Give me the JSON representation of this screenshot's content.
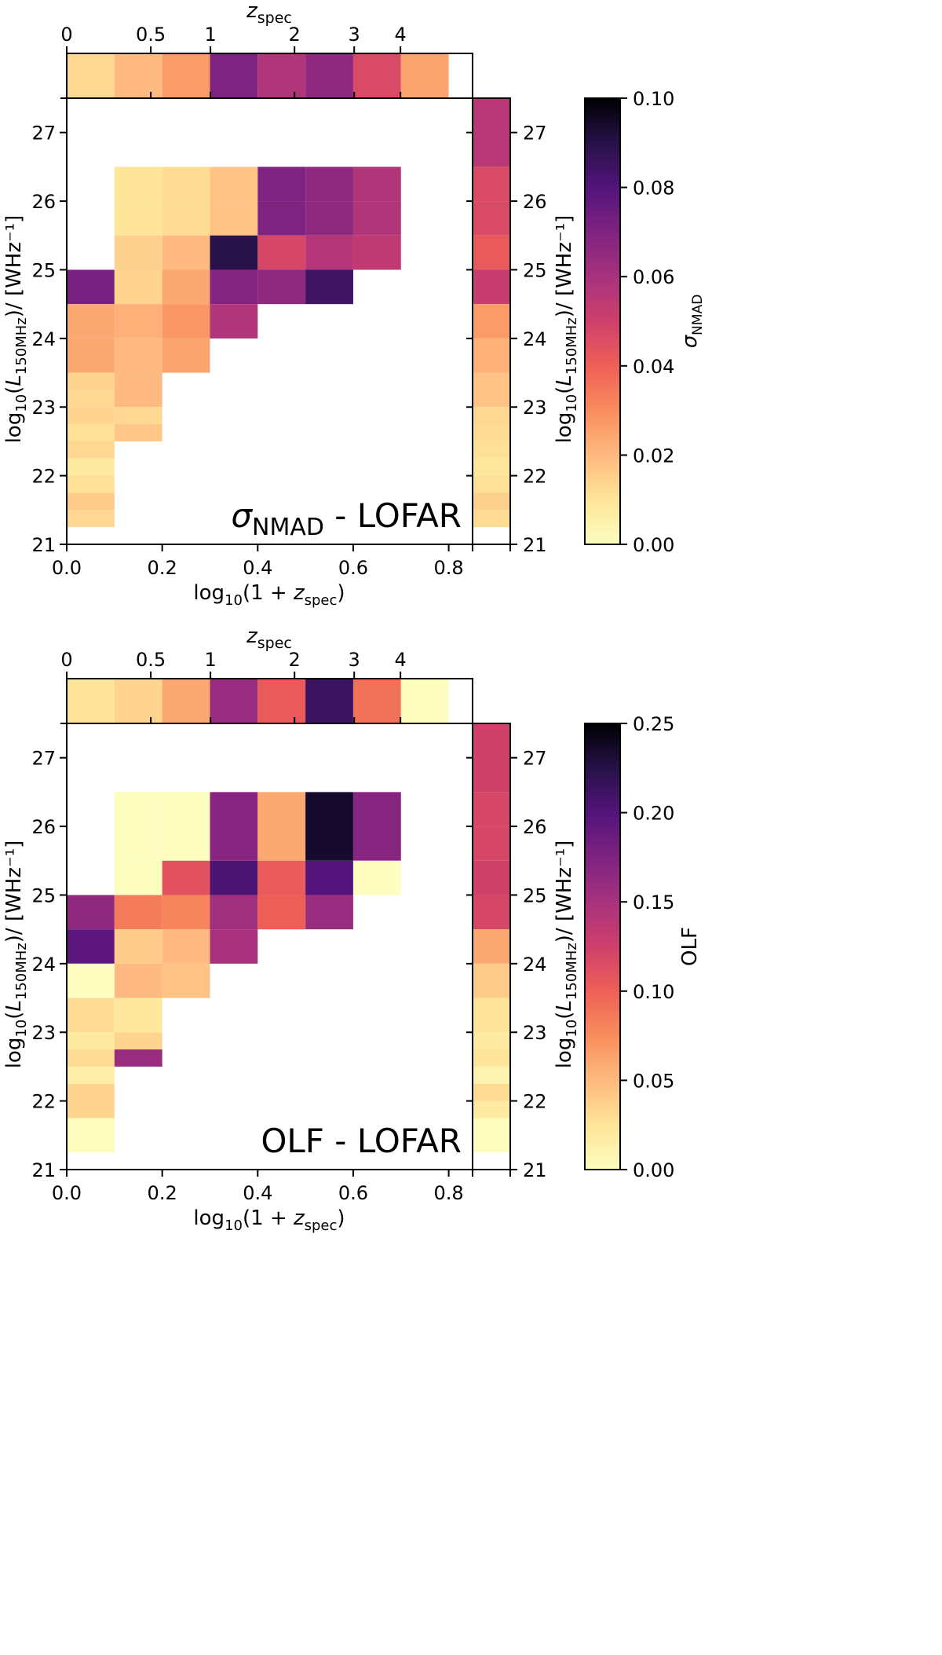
{
  "chart_data": [
    {
      "type": "heatmap",
      "title": "",
      "annotation": {
        "symbol": "σ",
        "sub": "NMAD",
        "text": " - LOFAR"
      },
      "xlabel": {
        "pre": "log",
        "sub1": "10",
        "mid": "(1 + ",
        "var": "z",
        "sub2": "spec",
        "post": ")"
      },
      "ylabel": {
        "pre": "log",
        "sub1": "10",
        "mid": "(",
        "var": "L",
        "sub2": "150MHz",
        "post": ")/ [WHz⁻¹]"
      },
      "top_label": {
        "var": "z",
        "sub": "spec"
      },
      "cbar_label": {
        "symbol": "σ",
        "sub": "NMAD"
      },
      "xlim": [
        0.0,
        0.85
      ],
      "ylim": [
        21,
        27.5
      ],
      "x_ticks": [
        "0.0",
        "0.2",
        "0.4",
        "0.6",
        "0.8"
      ],
      "y_ticks": [
        "21",
        "22",
        "23",
        "24",
        "25",
        "26",
        "27"
      ],
      "z_ticks": [
        {
          "z": 0,
          "label": "0"
        },
        {
          "z": 0.5,
          "label": "0.5"
        },
        {
          "z": 1,
          "label": "1"
        },
        {
          "z": 2,
          "label": "2"
        },
        {
          "z": 3,
          "label": "3"
        },
        {
          "z": 4,
          "label": "4"
        }
      ],
      "cbar_range": [
        0.0,
        0.1
      ],
      "cbar_ticks": [
        "0.00",
        "0.02",
        "0.04",
        "0.06",
        "0.08",
        "0.10"
      ],
      "cells": [
        {
          "x": [
            0.0,
            0.1
          ],
          "y": [
            24.5,
            25.0
          ],
          "v": 0.072
        },
        {
          "x": [
            0.0,
            0.1
          ],
          "y": [
            24.0,
            24.5
          ],
          "v": 0.024
        },
        {
          "x": [
            0.0,
            0.1
          ],
          "y": [
            23.5,
            24.0
          ],
          "v": 0.024
        },
        {
          "x": [
            0.0,
            0.1
          ],
          "y": [
            23.25,
            23.5
          ],
          "v": 0.014
        },
        {
          "x": [
            0.0,
            0.1
          ],
          "y": [
            23.0,
            23.25
          ],
          "v": 0.013
        },
        {
          "x": [
            0.0,
            0.1
          ],
          "y": [
            22.75,
            23.0
          ],
          "v": 0.014
        },
        {
          "x": [
            0.0,
            0.1
          ],
          "y": [
            22.5,
            22.75
          ],
          "v": 0.011
        },
        {
          "x": [
            0.0,
            0.1
          ],
          "y": [
            22.25,
            22.5
          ],
          "v": 0.013
        },
        {
          "x": [
            0.0,
            0.1
          ],
          "y": [
            22.0,
            22.25
          ],
          "v": 0.008
        },
        {
          "x": [
            0.0,
            0.1
          ],
          "y": [
            21.75,
            22.0
          ],
          "v": 0.011
        },
        {
          "x": [
            0.0,
            0.1
          ],
          "y": [
            21.5,
            21.75
          ],
          "v": 0.016
        },
        {
          "x": [
            0.0,
            0.1
          ],
          "y": [
            21.25,
            21.5
          ],
          "v": 0.013
        },
        {
          "x": [
            0.1,
            0.2
          ],
          "y": [
            26.0,
            26.5
          ],
          "v": 0.01
        },
        {
          "x": [
            0.1,
            0.2
          ],
          "y": [
            25.5,
            26.0
          ],
          "v": 0.01
        },
        {
          "x": [
            0.1,
            0.2
          ],
          "y": [
            25.0,
            25.5
          ],
          "v": 0.015
        },
        {
          "x": [
            0.1,
            0.2
          ],
          "y": [
            24.5,
            25.0
          ],
          "v": 0.014
        },
        {
          "x": [
            0.1,
            0.2
          ],
          "y": [
            24.0,
            24.5
          ],
          "v": 0.022
        },
        {
          "x": [
            0.1,
            0.2
          ],
          "y": [
            23.5,
            24.0
          ],
          "v": 0.02
        },
        {
          "x": [
            0.1,
            0.2
          ],
          "y": [
            23.0,
            23.5
          ],
          "v": 0.02
        },
        {
          "x": [
            0.1,
            0.2
          ],
          "y": [
            22.75,
            23.0
          ],
          "v": 0.013
        },
        {
          "x": [
            0.1,
            0.2
          ],
          "y": [
            22.5,
            22.75
          ],
          "v": 0.017
        },
        {
          "x": [
            0.2,
            0.3
          ],
          "y": [
            26.0,
            26.5
          ],
          "v": 0.012
        },
        {
          "x": [
            0.2,
            0.3
          ],
          "y": [
            25.5,
            26.0
          ],
          "v": 0.012
        },
        {
          "x": [
            0.2,
            0.3
          ],
          "y": [
            25.0,
            25.5
          ],
          "v": 0.02
        },
        {
          "x": [
            0.2,
            0.3
          ],
          "y": [
            24.5,
            25.0
          ],
          "v": 0.024
        },
        {
          "x": [
            0.2,
            0.3
          ],
          "y": [
            24.0,
            24.5
          ],
          "v": 0.028
        },
        {
          "x": [
            0.2,
            0.3
          ],
          "y": [
            23.5,
            24.0
          ],
          "v": 0.025
        },
        {
          "x": [
            0.3,
            0.4
          ],
          "y": [
            26.0,
            26.5
          ],
          "v": 0.018
        },
        {
          "x": [
            0.3,
            0.4
          ],
          "y": [
            25.5,
            26.0
          ],
          "v": 0.018
        },
        {
          "x": [
            0.3,
            0.4
          ],
          "y": [
            25.0,
            25.5
          ],
          "v": 0.09
        },
        {
          "x": [
            0.3,
            0.4
          ],
          "y": [
            24.5,
            25.0
          ],
          "v": 0.069
        },
        {
          "x": [
            0.3,
            0.4
          ],
          "y": [
            24.0,
            24.5
          ],
          "v": 0.058
        },
        {
          "x": [
            0.4,
            0.5
          ],
          "y": [
            26.0,
            26.5
          ],
          "v": 0.07
        },
        {
          "x": [
            0.4,
            0.5
          ],
          "y": [
            25.5,
            26.0
          ],
          "v": 0.07
        },
        {
          "x": [
            0.4,
            0.5
          ],
          "y": [
            25.0,
            25.5
          ],
          "v": 0.048
        },
        {
          "x": [
            0.4,
            0.5
          ],
          "y": [
            24.5,
            25.0
          ],
          "v": 0.066
        },
        {
          "x": [
            0.5,
            0.6
          ],
          "y": [
            26.0,
            26.5
          ],
          "v": 0.066
        },
        {
          "x": [
            0.5,
            0.6
          ],
          "y": [
            25.5,
            26.0
          ],
          "v": 0.066
        },
        {
          "x": [
            0.5,
            0.6
          ],
          "y": [
            25.0,
            25.5
          ],
          "v": 0.057
        },
        {
          "x": [
            0.5,
            0.6
          ],
          "y": [
            24.5,
            25.0
          ],
          "v": 0.085
        },
        {
          "x": [
            0.6,
            0.7
          ],
          "y": [
            26.0,
            26.5
          ],
          "v": 0.058
        },
        {
          "x": [
            0.6,
            0.7
          ],
          "y": [
            25.5,
            26.0
          ],
          "v": 0.058
        },
        {
          "x": [
            0.6,
            0.7
          ],
          "y": [
            25.0,
            25.5
          ],
          "v": 0.054
        }
      ],
      "top_marginal": [
        0.013,
        0.02,
        0.027,
        0.07,
        0.058,
        0.066,
        0.047,
        0.025
      ],
      "right_marginal": [
        {
          "y": [
            26.5,
            27.5
          ],
          "v": 0.056
        },
        {
          "y": [
            26.0,
            26.5
          ],
          "v": 0.047
        },
        {
          "y": [
            25.5,
            26.0
          ],
          "v": 0.047
        },
        {
          "y": [
            25.0,
            25.5
          ],
          "v": 0.042
        },
        {
          "y": [
            24.5,
            25.0
          ],
          "v": 0.052
        },
        {
          "y": [
            24.0,
            24.5
          ],
          "v": 0.027
        },
        {
          "y": [
            23.5,
            24.0
          ],
          "v": 0.022
        },
        {
          "y": [
            23.0,
            23.5
          ],
          "v": 0.018
        },
        {
          "y": [
            22.75,
            23.0
          ],
          "v": 0.013
        },
        {
          "y": [
            22.5,
            22.75
          ],
          "v": 0.012
        },
        {
          "y": [
            22.25,
            22.5
          ],
          "v": 0.011
        },
        {
          "y": [
            22.0,
            22.25
          ],
          "v": 0.009
        },
        {
          "y": [
            21.75,
            22.0
          ],
          "v": 0.011
        },
        {
          "y": [
            21.5,
            21.75
          ],
          "v": 0.015
        },
        {
          "y": [
            21.25,
            21.5
          ],
          "v": 0.012
        }
      ]
    },
    {
      "type": "heatmap",
      "title": "",
      "annotation": {
        "symbol": "",
        "sub": "",
        "text": "OLF - LOFAR"
      },
      "xlabel": {
        "pre": "log",
        "sub1": "10",
        "mid": "(1 + ",
        "var": "z",
        "sub2": "spec",
        "post": ")"
      },
      "ylabel": {
        "pre": "log",
        "sub1": "10",
        "mid": "(",
        "var": "L",
        "sub2": "150MHz",
        "post": ")/ [WHz⁻¹]"
      },
      "top_label": {
        "var": "z",
        "sub": "spec"
      },
      "cbar_label": {
        "symbol": "OLF",
        "sub": ""
      },
      "xlim": [
        0.0,
        0.85
      ],
      "ylim": [
        21,
        27.5
      ],
      "x_ticks": [
        "0.0",
        "0.2",
        "0.4",
        "0.6",
        "0.8"
      ],
      "y_ticks": [
        "21",
        "22",
        "23",
        "24",
        "25",
        "26",
        "27"
      ],
      "z_ticks": [
        {
          "z": 0,
          "label": "0"
        },
        {
          "z": 0.5,
          "label": "0.5"
        },
        {
          "z": 1,
          "label": "1"
        },
        {
          "z": 2,
          "label": "2"
        },
        {
          "z": 3,
          "label": "3"
        },
        {
          "z": 4,
          "label": "4"
        }
      ],
      "cbar_range": [
        0.0,
        0.25
      ],
      "cbar_ticks": [
        "0.00",
        "0.05",
        "0.10",
        "0.15",
        "0.20",
        "0.25"
      ],
      "cells": [
        {
          "x": [
            0.0,
            0.1
          ],
          "y": [
            24.5,
            25.0
          ],
          "v": 0.165
        },
        {
          "x": [
            0.0,
            0.1
          ],
          "y": [
            24.0,
            24.5
          ],
          "v": 0.195
        },
        {
          "x": [
            0.0,
            0.1
          ],
          "y": [
            23.5,
            24.0
          ],
          "v": 0.0
        },
        {
          "x": [
            0.0,
            0.1
          ],
          "y": [
            23.0,
            23.5
          ],
          "v": 0.03
        },
        {
          "x": [
            0.0,
            0.1
          ],
          "y": [
            22.75,
            23.0
          ],
          "v": 0.02
        },
        {
          "x": [
            0.0,
            0.1
          ],
          "y": [
            22.5,
            22.75
          ],
          "v": 0.03
        },
        {
          "x": [
            0.0,
            0.1
          ],
          "y": [
            22.25,
            22.5
          ],
          "v": 0.015
        },
        {
          "x": [
            0.0,
            0.1
          ],
          "y": [
            21.75,
            22.25
          ],
          "v": 0.035
        },
        {
          "x": [
            0.0,
            0.1
          ],
          "y": [
            21.25,
            21.75
          ],
          "v": 0.0
        },
        {
          "x": [
            0.1,
            0.2
          ],
          "y": [
            25.5,
            26.5
          ],
          "v": 0.0
        },
        {
          "x": [
            0.1,
            0.2
          ],
          "y": [
            25.0,
            25.5
          ],
          "v": 0.0
        },
        {
          "x": [
            0.1,
            0.2
          ],
          "y": [
            24.5,
            25.0
          ],
          "v": 0.085
        },
        {
          "x": [
            0.1,
            0.2
          ],
          "y": [
            24.0,
            24.5
          ],
          "v": 0.04
        },
        {
          "x": [
            0.1,
            0.2
          ],
          "y": [
            23.5,
            24.0
          ],
          "v": 0.05
        },
        {
          "x": [
            0.1,
            0.2
          ],
          "y": [
            23.0,
            23.5
          ],
          "v": 0.022
        },
        {
          "x": [
            0.1,
            0.2
          ],
          "y": [
            22.75,
            23.0
          ],
          "v": 0.035
        },
        {
          "x": [
            0.1,
            0.2
          ],
          "y": [
            22.5,
            22.75
          ],
          "v": 0.16
        },
        {
          "x": [
            0.2,
            0.3
          ],
          "y": [
            25.5,
            26.5
          ],
          "v": 0.0
        },
        {
          "x": [
            0.2,
            0.3
          ],
          "y": [
            25.0,
            25.5
          ],
          "v": 0.11
        },
        {
          "x": [
            0.2,
            0.3
          ],
          "y": [
            24.5,
            25.0
          ],
          "v": 0.08
        },
        {
          "x": [
            0.2,
            0.3
          ],
          "y": [
            24.0,
            24.5
          ],
          "v": 0.05
        },
        {
          "x": [
            0.2,
            0.3
          ],
          "y": [
            23.5,
            24.0
          ],
          "v": 0.045
        },
        {
          "x": [
            0.3,
            0.4
          ],
          "y": [
            25.5,
            26.5
          ],
          "v": 0.17
        },
        {
          "x": [
            0.3,
            0.4
          ],
          "y": [
            25.0,
            25.5
          ],
          "v": 0.205
        },
        {
          "x": [
            0.3,
            0.4
          ],
          "y": [
            24.5,
            25.0
          ],
          "v": 0.155
        },
        {
          "x": [
            0.3,
            0.4
          ],
          "y": [
            24.0,
            24.5
          ],
          "v": 0.15
        },
        {
          "x": [
            0.4,
            0.5
          ],
          "y": [
            25.5,
            26.5
          ],
          "v": 0.06
        },
        {
          "x": [
            0.4,
            0.5
          ],
          "y": [
            25.0,
            25.5
          ],
          "v": 0.105
        },
        {
          "x": [
            0.4,
            0.5
          ],
          "y": [
            24.5,
            25.0
          ],
          "v": 0.1
        },
        {
          "x": [
            0.5,
            0.6
          ],
          "y": [
            25.5,
            26.5
          ],
          "v": 0.235
        },
        {
          "x": [
            0.5,
            0.6
          ],
          "y": [
            25.0,
            25.5
          ],
          "v": 0.2
        },
        {
          "x": [
            0.5,
            0.6
          ],
          "y": [
            24.5,
            25.0
          ],
          "v": 0.16
        },
        {
          "x": [
            0.6,
            0.7
          ],
          "y": [
            25.5,
            26.5
          ],
          "v": 0.17
        },
        {
          "x": [
            0.6,
            0.7
          ],
          "y": [
            25.0,
            25.5
          ],
          "v": 0.0
        }
      ],
      "top_marginal": [
        0.025,
        0.035,
        0.06,
        0.16,
        0.105,
        0.215,
        0.09,
        0.0
      ],
      "right_marginal": [
        {
          "y": [
            26.5,
            27.5
          ],
          "v": 0.125
        },
        {
          "y": [
            26.0,
            26.5
          ],
          "v": 0.12
        },
        {
          "y": [
            25.5,
            26.0
          ],
          "v": 0.12
        },
        {
          "y": [
            25.0,
            25.5
          ],
          "v": 0.125
        },
        {
          "y": [
            24.5,
            25.0
          ],
          "v": 0.12
        },
        {
          "y": [
            24.0,
            24.5
          ],
          "v": 0.06
        },
        {
          "y": [
            23.5,
            24.0
          ],
          "v": 0.04
        },
        {
          "y": [
            23.0,
            23.5
          ],
          "v": 0.025
        },
        {
          "y": [
            22.75,
            23.0
          ],
          "v": 0.02
        },
        {
          "y": [
            22.5,
            22.75
          ],
          "v": 0.025
        },
        {
          "y": [
            22.25,
            22.5
          ],
          "v": 0.01
        },
        {
          "y": [
            22.0,
            22.25
          ],
          "v": 0.03
        },
        {
          "y": [
            21.75,
            22.0
          ],
          "v": 0.02
        },
        {
          "y": [
            21.25,
            21.75
          ],
          "v": 0.0
        }
      ]
    }
  ]
}
